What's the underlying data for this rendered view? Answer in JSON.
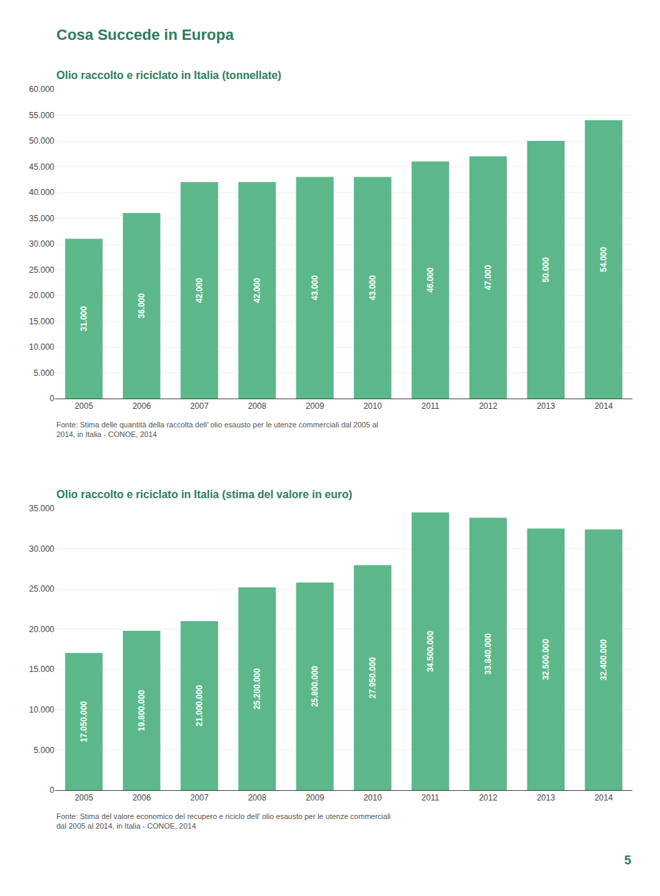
{
  "chart_data": [
    {
      "type": "bar",
      "title": "Olio raccolto e riciclato in Italia (tonnellate)",
      "categories": [
        "2005",
        "2006",
        "2007",
        "2008",
        "2009",
        "2010",
        "2011",
        "2012",
        "2013",
        "2014"
      ],
      "values": [
        31000,
        36000,
        42000,
        42000,
        43000,
        43000,
        46000,
        47000,
        50000,
        54000
      ],
      "value_labels": [
        "31.000",
        "36.000",
        "42.000",
        "42.000",
        "43.000",
        "43.000",
        "46.000",
        "47.000",
        "50.000",
        "54.000"
      ],
      "data_labels": true,
      "color": "#5cb88a",
      "ylim": [
        0,
        60000
      ],
      "yticks": [
        0,
        {
          "value": 5000,
          "label": "5.000"
        },
        {
          "value": 10000,
          "label": "10.000"
        },
        {
          "value": 15000,
          "label": "15.000"
        },
        {
          "value": 20000,
          "label": "20.000"
        },
        {
          "value": 25000,
          "label": "25.000"
        },
        {
          "value": 30000,
          "label": "30.000"
        },
        {
          "value": 35000,
          "label": "35.000"
        },
        {
          "value": 40000,
          "label": "40.000"
        },
        {
          "value": 45000,
          "label": "45.000"
        },
        {
          "value": 50000,
          "label": "50.000"
        },
        {
          "value": 55000,
          "label": "55.000"
        },
        {
          "value": 60000,
          "label": "60.000"
        }
      ],
      "grid": true,
      "annotations": [
        "Cosa Succede in Europa",
        "Fonte: Stima delle quantità della raccolta dell’ olio esausto per le utenze commerciali dal 2005 al\n2014, in Italia - CONOE, 2014"
      ]
    },
    {
      "type": "bar",
      "title": "Olio raccolto e riciclato in Italia (stima del valore in euro)",
      "categories": [
        "2005",
        "2006",
        "2007",
        "2008",
        "2009",
        "2010",
        "2011",
        "2012",
        "2013",
        "2014"
      ],
      "values": [
        17050000,
        19800000,
        21000000,
        25200000,
        25800000,
        27950000,
        34500000,
        33840000,
        32500000,
        32400000
      ],
      "value_labels": [
        "17.050.000",
        "19.800.000",
        "21.000.000",
        "25.200.000",
        "25.800.000",
        "27.950.000",
        "34.500.000",
        "33.840.000",
        "32.500.000",
        "32.400.000"
      ],
      "data_labels": true,
      "color": "#5cb88a",
      "ylim": [
        0,
        35000000
      ],
      "yticks": [
        0,
        {
          "value": 5000000,
          "label": "5.000"
        },
        {
          "value": 10000000,
          "label": "10.000"
        },
        {
          "value": 15000000,
          "label": "15.000"
        },
        {
          "value": 20000000,
          "label": "20.000"
        },
        {
          "value": 25000000,
          "label": "25.000"
        },
        {
          "value": 30000000,
          "label": "30.000"
        },
        {
          "value": 35000000,
          "label": "35.000"
        }
      ],
      "grid": true,
      "annotations": [
        "Fonte: Stima del valore economico del recupero e riciclo dell’ olio esausto per le utenze commerciali\ndal 2005 al 2014, in Italia - CONOE, 2014",
        "5"
      ]
    }
  ]
}
